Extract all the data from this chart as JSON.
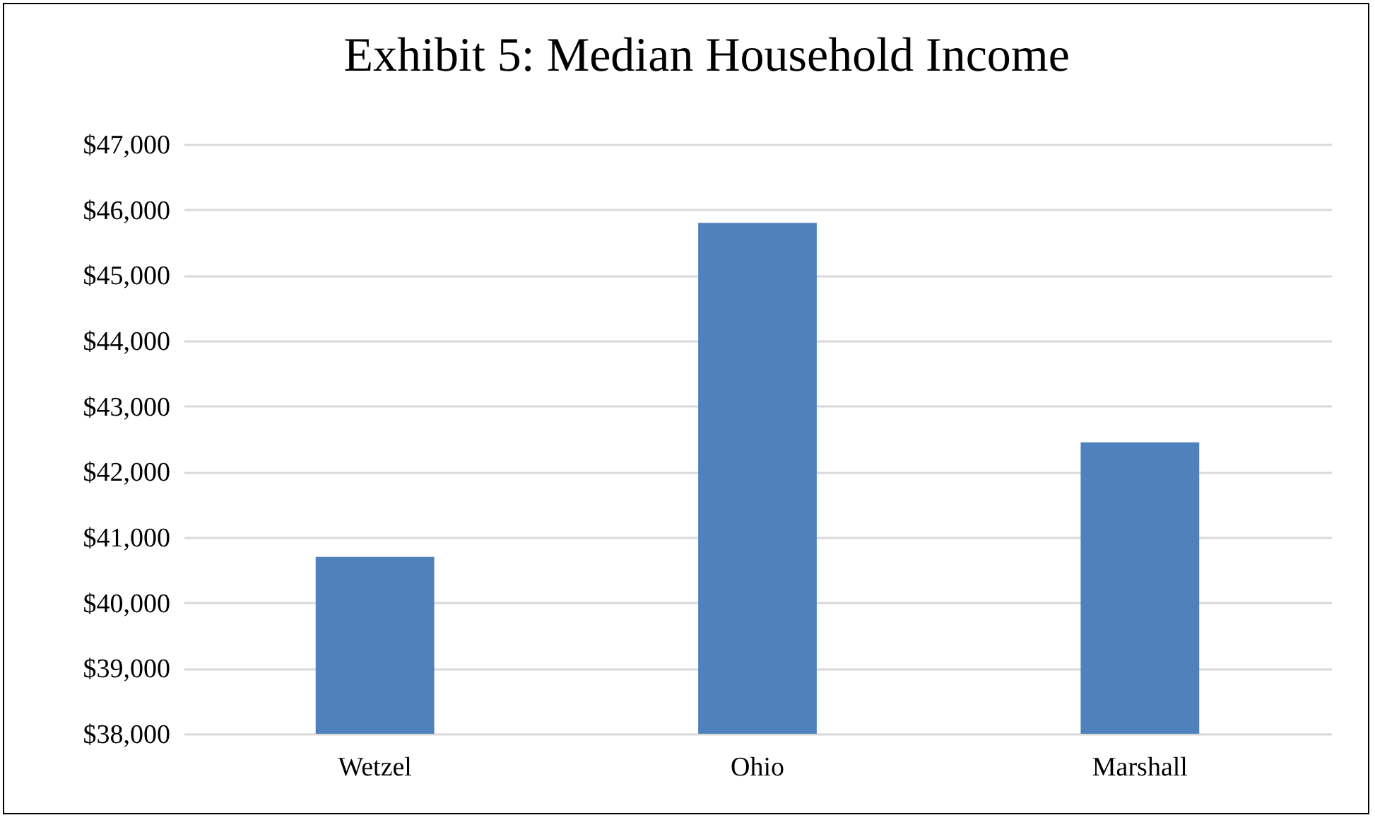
{
  "chart_data": {
    "type": "bar",
    "title": "Exhibit 5: Median Household Income",
    "categories": [
      "Wetzel",
      "Ohio",
      "Marshall"
    ],
    "values": [
      40700,
      45800,
      42450
    ],
    "color": "#4f81bd",
    "ylim": [
      38000,
      47000
    ],
    "yticks": [
      {
        "value": 38000,
        "label": "$38,000"
      },
      {
        "value": 39000,
        "label": "$39,000"
      },
      {
        "value": 40000,
        "label": "$40,000"
      },
      {
        "value": 41000,
        "label": "$41,000"
      },
      {
        "value": 42000,
        "label": "$42,000"
      },
      {
        "value": 43000,
        "label": "$43,000"
      },
      {
        "value": 44000,
        "label": "$44,000"
      },
      {
        "value": 45000,
        "label": "$45,000"
      },
      {
        "value": 46000,
        "label": "$46,000"
      },
      {
        "value": 47000,
        "label": "$47,000"
      }
    ],
    "grid": true
  }
}
